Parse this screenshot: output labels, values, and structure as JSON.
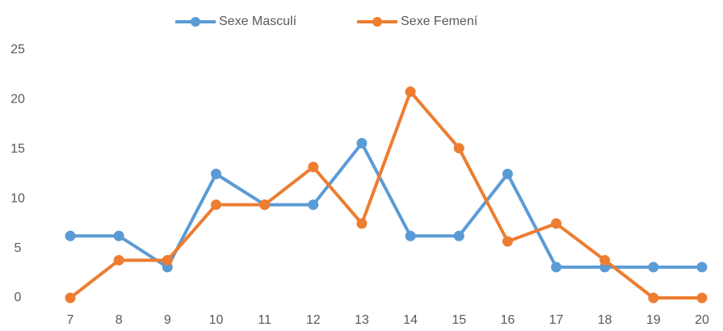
{
  "chart_data": {
    "type": "line",
    "categories": [
      "7",
      "8",
      "9",
      "10",
      "11",
      "12",
      "13",
      "14",
      "15",
      "16",
      "17",
      "18",
      "19",
      "20"
    ],
    "series": [
      {
        "name": "Sexe Masculí",
        "color": "#5b9bd5",
        "values": [
          6.25,
          6.25,
          3.1,
          12.5,
          9.4,
          9.4,
          15.6,
          6.25,
          6.25,
          12.5,
          3.1,
          3.1,
          3.1,
          3.1
        ]
      },
      {
        "name": "Sexe Femení",
        "color": "#ed7d31",
        "values": [
          0,
          3.8,
          3.8,
          9.4,
          9.4,
          13.2,
          7.5,
          20.8,
          15.1,
          5.7,
          7.5,
          3.8,
          0,
          0
        ]
      }
    ],
    "ylim": [
      0,
      25
    ],
    "yticks": [
      0,
      5,
      10,
      15,
      20,
      25
    ],
    "legend": "top"
  }
}
